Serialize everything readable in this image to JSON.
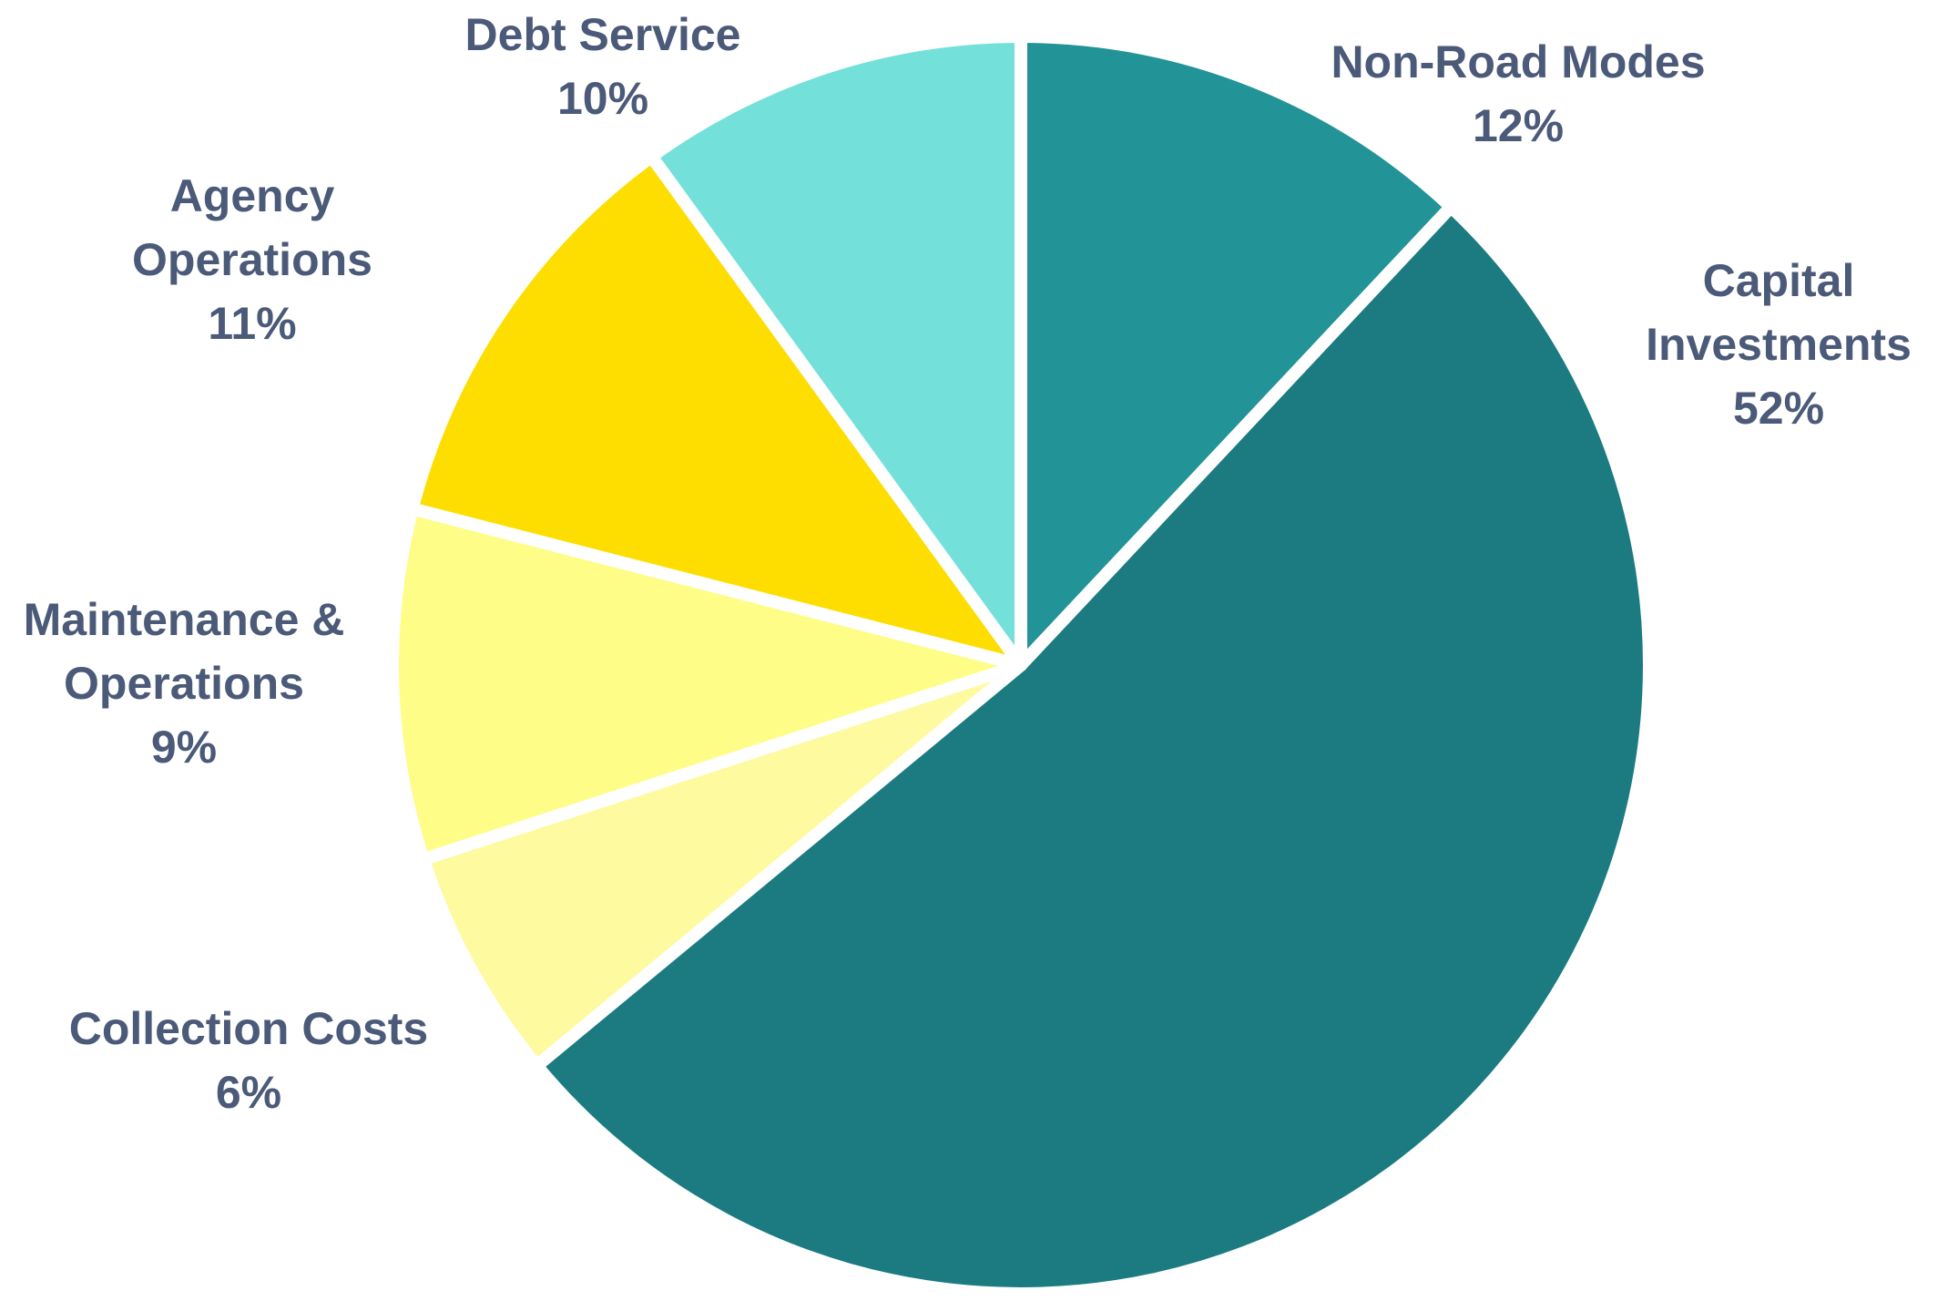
{
  "chart_data": {
    "type": "pie",
    "categories": [
      "Non-Road Modes",
      "Capital Investments",
      "Collection Costs",
      "Maintenance & Operations",
      "Agency Operations",
      "Debt Service"
    ],
    "values": [
      12,
      52,
      6,
      9,
      11,
      10
    ],
    "value_labels": [
      "12%",
      "52%",
      "6%",
      "9%",
      "11%",
      "10%"
    ],
    "colors": [
      "#229396",
      "#1b7b80",
      "#fefaa0",
      "#fefd88",
      "#fedd00",
      "#74e0da"
    ]
  }
}
